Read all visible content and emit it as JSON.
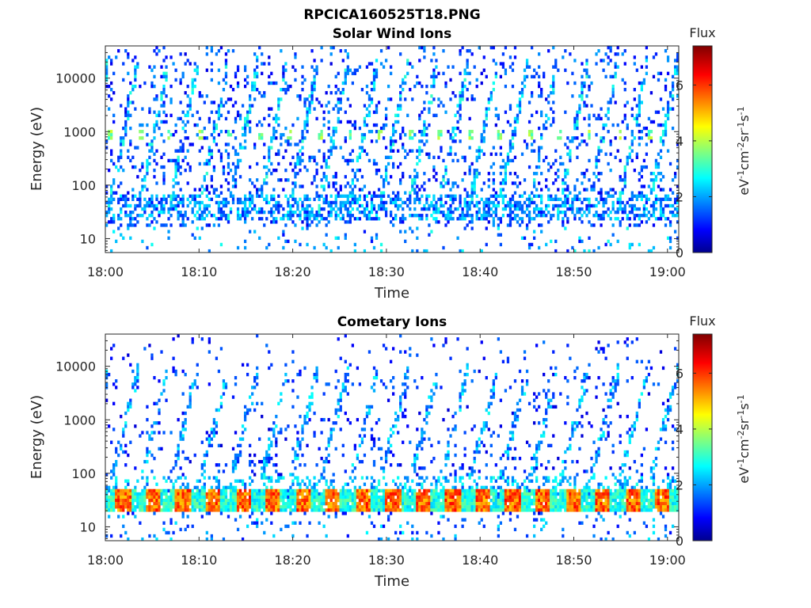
{
  "figure": {
    "filename": "RPCICA160525T18.PNG"
  },
  "colorbar": {
    "label": "Flux",
    "unit_main": "eV",
    "unit_parts": [
      {
        "t": "eV",
        "sup": false
      },
      {
        "t": "-1",
        "sup": true
      },
      {
        "t": "cm",
        "sup": false
      },
      {
        "t": "-2",
        "sup": true
      },
      {
        "t": "sr",
        "sup": false
      },
      {
        "t": "-1",
        "sup": true
      },
      {
        "t": "s",
        "sup": false
      },
      {
        "t": "-1",
        "sup": true
      }
    ],
    "range": [
      0,
      7.4
    ],
    "ticks": [
      "0",
      "2",
      "4",
      "6"
    ],
    "tick_values": [
      0,
      2,
      4,
      6
    ],
    "colormap": "jet"
  },
  "chart_data": [
    {
      "type": "heatmap",
      "title": "Solar Wind Ions",
      "xlabel": "Time",
      "ylabel": "Energy (eV)",
      "yscale": "log",
      "ylim": [
        5.5,
        40000
      ],
      "xlim": [
        "18:00",
        "19:01"
      ],
      "x_ticks": [
        "18:00",
        "18:10",
        "18:20",
        "18:30",
        "18:40",
        "18:50",
        "19:00"
      ],
      "y_ticks": [
        "10",
        "100",
        "1000",
        "10000"
      ],
      "y_tick_values": [
        10,
        100,
        1000,
        10000
      ],
      "description_values": {
        "sweep_period_minutes": 3.2,
        "background_band_eV": [
          25,
          60
        ],
        "peak_energy_eV": 900,
        "max_flux": 4.3
      }
    },
    {
      "type": "heatmap",
      "title": "Cometary Ions",
      "xlabel": "Time",
      "ylabel": "Energy (eV)",
      "yscale": "log",
      "ylim": [
        5.5,
        40000
      ],
      "xlim": [
        "18:00",
        "19:01"
      ],
      "x_ticks": [
        "18:00",
        "18:10",
        "18:20",
        "18:30",
        "18:40",
        "18:50",
        "19:00"
      ],
      "y_ticks": [
        "10",
        "100",
        "1000",
        "10000"
      ],
      "y_tick_values": [
        10,
        100,
        1000,
        10000
      ],
      "description_values": {
        "sweep_period_minutes": 3.2,
        "dense_band_eV": [
          20,
          40
        ],
        "max_flux": 6.5
      }
    }
  ]
}
